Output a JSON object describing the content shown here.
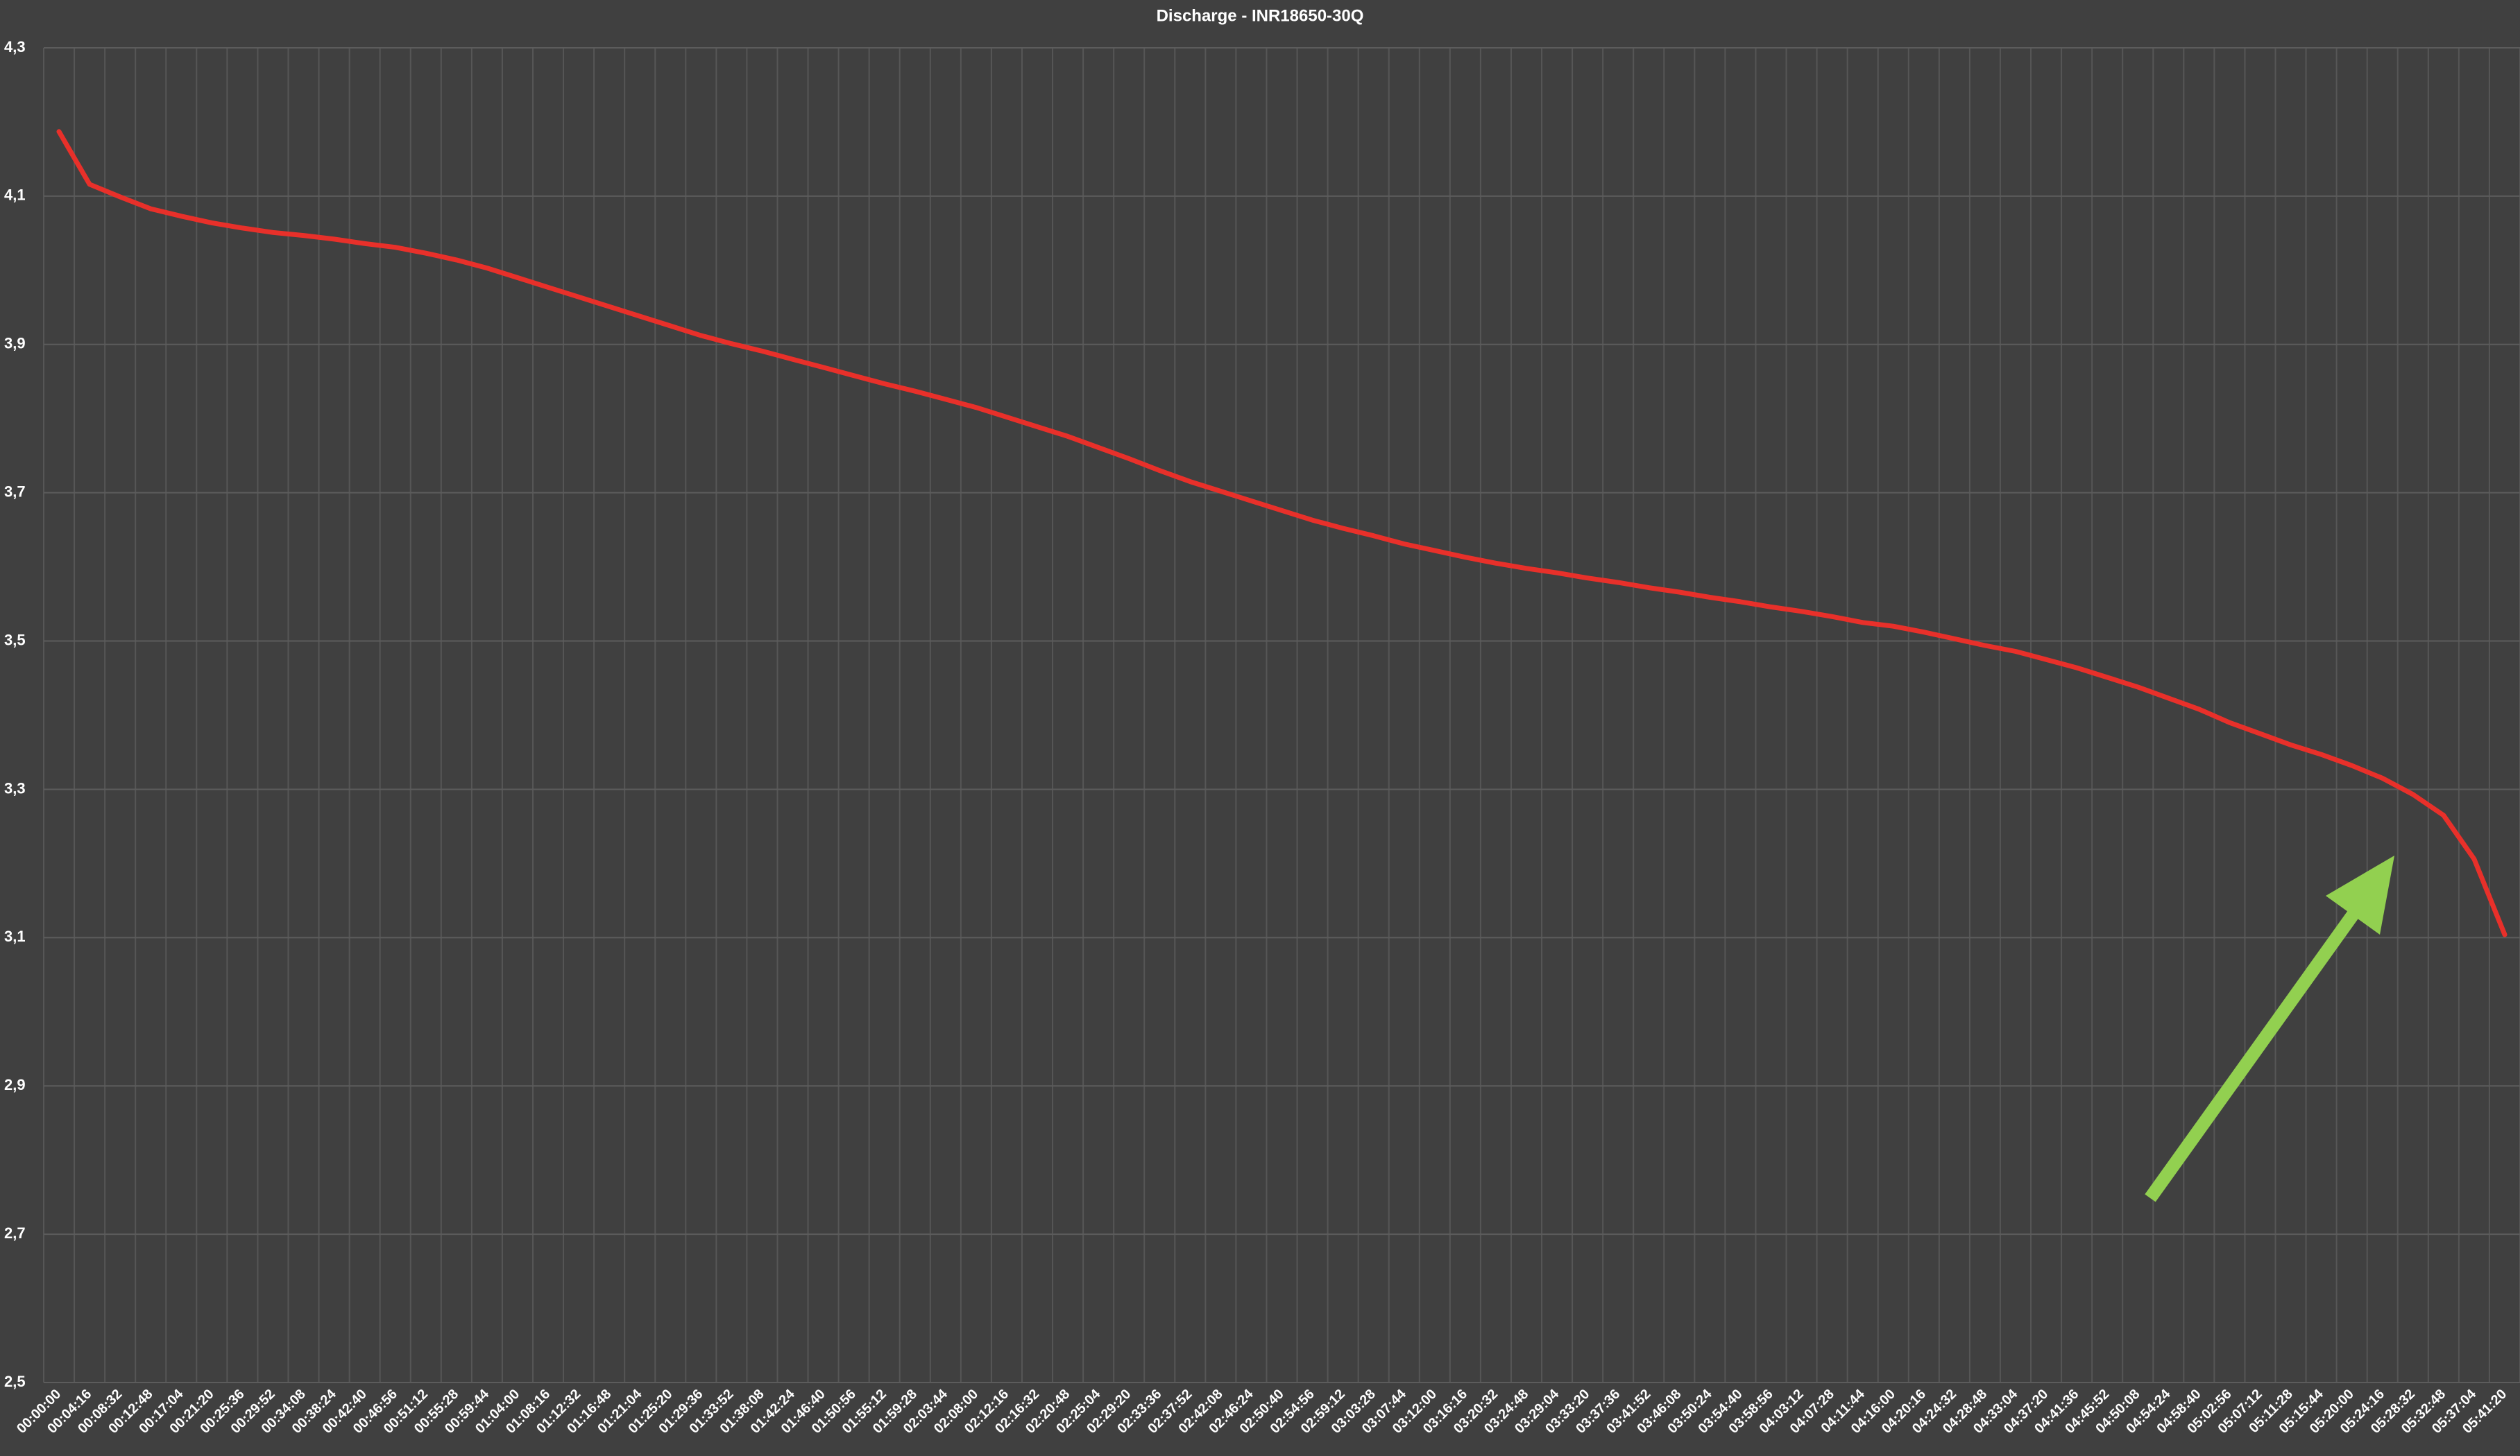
{
  "chart_data": {
    "type": "line",
    "title": "Discharge - INR18650-30Q",
    "categories": [
      "00:00:00",
      "00:04:16",
      "00:08:32",
      "00:12:48",
      "00:17:04",
      "00:21:20",
      "00:25:36",
      "00:29:52",
      "00:34:08",
      "00:38:24",
      "00:42:40",
      "00:46:56",
      "00:51:12",
      "00:55:28",
      "00:59:44",
      "01:04:00",
      "01:08:16",
      "01:12:32",
      "01:16:48",
      "01:21:04",
      "01:25:20",
      "01:29:36",
      "01:33:52",
      "01:38:08",
      "01:42:24",
      "01:46:40",
      "01:50:56",
      "01:55:12",
      "01:59:28",
      "02:03:44",
      "02:08:00",
      "02:12:16",
      "02:16:32",
      "02:20:48",
      "02:25:04",
      "02:29:20",
      "02:33:36",
      "02:37:52",
      "02:42:08",
      "02:46:24",
      "02:50:40",
      "02:54:56",
      "02:59:12",
      "03:03:28",
      "03:07:44",
      "03:12:00",
      "03:16:16",
      "03:20:32",
      "03:24:48",
      "03:29:04",
      "03:33:20",
      "03:37:36",
      "03:41:52",
      "03:46:08",
      "03:50:24",
      "03:54:40",
      "03:58:56",
      "04:03:12",
      "04:07:28",
      "04:11:44",
      "04:16:00",
      "04:20:16",
      "04:24:32",
      "04:28:48",
      "04:33:04",
      "04:37:20",
      "04:41:36",
      "04:45:52",
      "04:50:08",
      "04:54:24",
      "04:58:40",
      "05:02:56",
      "05:07:12",
      "05:11:28",
      "05:15:44",
      "05:20:00",
      "05:24:16",
      "05:28:32",
      "05:32:48",
      "05:37:04",
      "05:41:20"
    ],
    "values": [
      4.187,
      4.116,
      4.099,
      4.083,
      4.073,
      4.064,
      4.057,
      4.051,
      4.047,
      4.042,
      4.036,
      4.031,
      4.023,
      4.014,
      4.003,
      3.99,
      3.977,
      3.964,
      3.951,
      3.938,
      3.925,
      3.912,
      3.901,
      3.891,
      3.88,
      3.869,
      3.858,
      3.847,
      3.837,
      3.826,
      3.815,
      3.802,
      3.789,
      3.776,
      3.761,
      3.746,
      3.73,
      3.715,
      3.702,
      3.689,
      3.676,
      3.663,
      3.652,
      3.642,
      3.631,
      3.622,
      3.613,
      3.605,
      3.598,
      3.592,
      3.585,
      3.579,
      3.572,
      3.566,
      3.559,
      3.553,
      3.546,
      3.54,
      3.533,
      3.525,
      3.52,
      3.512,
      3.503,
      3.494,
      3.486,
      3.475,
      3.464,
      3.451,
      3.438,
      3.423,
      3.408,
      3.39,
      3.375,
      3.36,
      3.347,
      3.332,
      3.315,
      3.293,
      3.265,
      3.206,
      3.104
    ],
    "color": "#e8302a",
    "ylim": [
      2.5,
      4.3
    ],
    "yticks": [
      {
        "value": 2.5,
        "label": "2,5"
      },
      {
        "value": 2.7,
        "label": "2,7"
      },
      {
        "value": 2.9,
        "label": "2,9"
      },
      {
        "value": 3.1,
        "label": "3,1"
      },
      {
        "value": 3.3,
        "label": "3,3"
      },
      {
        "value": 3.5,
        "label": "3,5"
      },
      {
        "value": 3.7,
        "label": "3,7"
      },
      {
        "value": 3.9,
        "label": "3,9"
      },
      {
        "value": 4.1,
        "label": "4,1"
      },
      {
        "value": 4.3,
        "label": "4,3"
      }
    ],
    "grid": true
  }
}
